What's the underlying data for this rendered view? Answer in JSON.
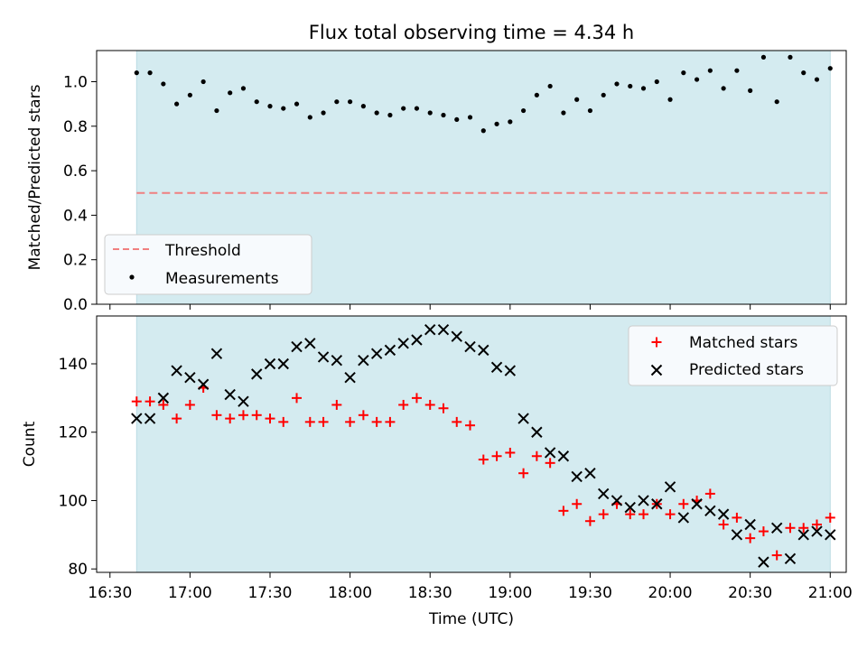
{
  "colors": {
    "shade": "#d4ebf0",
    "threshold": "#f08080",
    "measurement": "#000000",
    "matched": "#ff0000",
    "predicted": "#000000",
    "legend_bg": "#f7fafd"
  },
  "chart_data": [
    {
      "type": "scatter",
      "title": "Flux total observing time = 4.34 h",
      "xlabel": "",
      "ylabel": "Matched/Predicted stars",
      "xlim": [
        "16:25",
        "21:06"
      ],
      "ylim": [
        0,
        1.14
      ],
      "yticks": [
        "0.0",
        "0.2",
        "0.4",
        "0.6",
        "0.8",
        "1.0"
      ],
      "yticks_values": [
        0.0,
        0.2,
        0.4,
        0.6,
        0.8,
        1.0
      ],
      "shaded_region": [
        "16:40",
        "21:00"
      ],
      "grid": false,
      "legend": {
        "position": "lower-left",
        "entries": [
          "Threshold",
          "Measurements"
        ]
      },
      "series": [
        {
          "name": "Threshold",
          "kind": "hline",
          "y": 0.5,
          "x": [
            "16:40",
            "21:00"
          ]
        },
        {
          "name": "Measurements",
          "kind": "points",
          "x": [
            "16:40",
            "16:45",
            "16:50",
            "16:55",
            "17:00",
            "17:05",
            "17:10",
            "17:15",
            "17:20",
            "17:25",
            "17:30",
            "17:35",
            "17:40",
            "17:45",
            "17:50",
            "17:55",
            "18:00",
            "18:05",
            "18:10",
            "18:15",
            "18:20",
            "18:25",
            "18:30",
            "18:35",
            "18:40",
            "18:45",
            "18:50",
            "18:55",
            "19:00",
            "19:05",
            "19:10",
            "19:15",
            "19:20",
            "19:25",
            "19:30",
            "19:35",
            "19:40",
            "19:45",
            "19:50",
            "19:55",
            "20:00",
            "20:05",
            "20:10",
            "20:15",
            "20:20",
            "20:25",
            "20:30",
            "20:35",
            "20:40",
            "20:45",
            "20:50",
            "20:55",
            "21:00"
          ],
          "values": [
            1.04,
            1.04,
            0.99,
            0.9,
            0.94,
            1.0,
            0.87,
            0.95,
            0.97,
            0.91,
            0.89,
            0.88,
            0.9,
            0.84,
            0.86,
            0.91,
            0.91,
            0.89,
            0.86,
            0.85,
            0.88,
            0.88,
            0.86,
            0.85,
            0.83,
            0.84,
            0.78,
            0.81,
            0.82,
            0.87,
            0.94,
            0.98,
            0.86,
            0.92,
            0.87,
            0.94,
            0.99,
            0.98,
            0.97,
            1.0,
            0.92,
            1.04,
            1.01,
            1.05,
            0.97,
            1.05,
            0.96,
            1.11,
            0.91,
            1.11,
            1.04,
            1.01,
            1.06
          ]
        }
      ]
    },
    {
      "type": "scatter",
      "title": "",
      "xlabel": "Time (UTC)",
      "ylabel": "Count",
      "xlim": [
        "16:25",
        "21:06"
      ],
      "xticks": [
        "16:30",
        "17:00",
        "17:30",
        "18:00",
        "18:30",
        "19:00",
        "19:30",
        "20:00",
        "20:30",
        "21:00"
      ],
      "ylim": [
        79,
        154
      ],
      "yticks": [
        "80",
        "100",
        "120",
        "140"
      ],
      "yticks_values": [
        80,
        100,
        120,
        140
      ],
      "shaded_region": [
        "16:40",
        "21:00"
      ],
      "grid": false,
      "legend": {
        "position": "upper-right",
        "entries": [
          "Matched stars",
          "Predicted stars"
        ]
      },
      "series": [
        {
          "name": "Matched stars",
          "marker": "+",
          "x": [
            "16:40",
            "16:45",
            "16:50",
            "16:55",
            "17:00",
            "17:05",
            "17:10",
            "17:15",
            "17:20",
            "17:25",
            "17:30",
            "17:35",
            "17:40",
            "17:45",
            "17:50",
            "17:55",
            "18:00",
            "18:05",
            "18:10",
            "18:15",
            "18:20",
            "18:25",
            "18:30",
            "18:35",
            "18:40",
            "18:45",
            "18:50",
            "18:55",
            "19:00",
            "19:05",
            "19:10",
            "19:15",
            "19:20",
            "19:25",
            "19:30",
            "19:35",
            "19:40",
            "19:45",
            "19:50",
            "19:55",
            "20:00",
            "20:05",
            "20:10",
            "20:15",
            "20:20",
            "20:25",
            "20:30",
            "20:35",
            "20:40",
            "20:45",
            "20:50",
            "20:55",
            "21:00"
          ],
          "values": [
            129,
            129,
            128,
            124,
            128,
            133,
            125,
            124,
            125,
            125,
            124,
            123,
            130,
            123,
            123,
            128,
            123,
            125,
            123,
            123,
            128,
            130,
            128,
            127,
            123,
            122,
            112,
            113,
            114,
            108,
            113,
            111,
            97,
            99,
            94,
            96,
            99,
            96,
            96,
            99,
            96,
            99,
            100,
            102,
            93,
            95,
            89,
            91,
            84,
            92,
            92,
            93,
            95
          ]
        },
        {
          "name": "Predicted stars",
          "marker": "x",
          "x": [
            "16:40",
            "16:45",
            "16:50",
            "16:55",
            "17:00",
            "17:05",
            "17:10",
            "17:15",
            "17:20",
            "17:25",
            "17:30",
            "17:35",
            "17:40",
            "17:45",
            "17:50",
            "17:55",
            "18:00",
            "18:05",
            "18:10",
            "18:15",
            "18:20",
            "18:25",
            "18:30",
            "18:35",
            "18:40",
            "18:45",
            "18:50",
            "18:55",
            "19:00",
            "19:05",
            "19:10",
            "19:15",
            "19:20",
            "19:25",
            "19:30",
            "19:35",
            "19:40",
            "19:45",
            "19:50",
            "19:55",
            "20:00",
            "20:05",
            "20:10",
            "20:15",
            "20:20",
            "20:25",
            "20:30",
            "20:35",
            "20:40",
            "20:45",
            "20:50",
            "20:55",
            "21:00"
          ],
          "values": [
            124,
            124,
            130,
            138,
            136,
            134,
            143,
            131,
            129,
            137,
            140,
            140,
            145,
            146,
            142,
            141,
            136,
            141,
            143,
            144,
            146,
            147,
            150,
            150,
            148,
            145,
            144,
            139,
            138,
            124,
            120,
            114,
            113,
            107,
            108,
            102,
            100,
            98,
            100,
            99,
            104,
            95,
            99,
            97,
            96,
            90,
            93,
            82,
            92,
            83,
            90,
            91,
            90
          ]
        }
      ]
    }
  ]
}
